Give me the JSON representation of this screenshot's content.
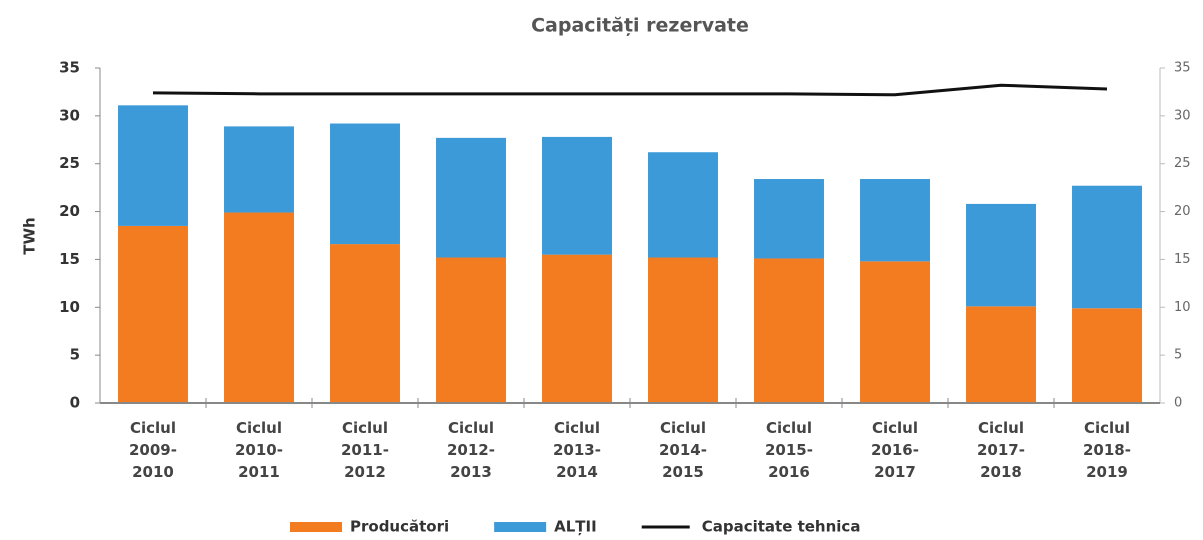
{
  "chart_data": {
    "type": "bar",
    "stacked": true,
    "title": "Capacități rezervate",
    "y_label": "TWh",
    "categories": [
      "Ciclul 2009-2010",
      "Ciclul 2010-2011",
      "Ciclul 2011-2012",
      "Ciclul 2012-2013",
      "Ciclul 2013-2014",
      "Ciclul 2014-2015",
      "Ciclul 2015-2016",
      "Ciclul 2016-2017",
      "Ciclul 2017-2018",
      "Ciclul 2018-2019"
    ],
    "series": [
      {
        "name": "Producători",
        "type": "bar",
        "color": "#f47c20",
        "values": [
          18.5,
          19.9,
          16.6,
          15.2,
          15.5,
          15.2,
          15.1,
          14.8,
          10.1,
          9.9
        ]
      },
      {
        "name": "ALȚII",
        "type": "bar",
        "color": "#3d9ad8",
        "values": [
          12.6,
          9.0,
          12.6,
          12.5,
          12.3,
          11.0,
          8.3,
          8.6,
          10.7,
          12.8
        ]
      },
      {
        "name": "Capacitate tehnica",
        "type": "line",
        "axis": "y2",
        "color": "#111111",
        "values": [
          32.4,
          32.3,
          32.3,
          32.3,
          32.3,
          32.3,
          32.3,
          32.2,
          33.2,
          32.8
        ]
      }
    ],
    "ylim": [
      0,
      35
    ],
    "yticks": [
      0,
      5,
      10,
      15,
      20,
      25,
      30,
      35
    ],
    "y2lim": [
      0,
      35
    ],
    "y2ticks": [
      0,
      5,
      10,
      15,
      20,
      25,
      30,
      35
    ],
    "legend": "bottom"
  }
}
